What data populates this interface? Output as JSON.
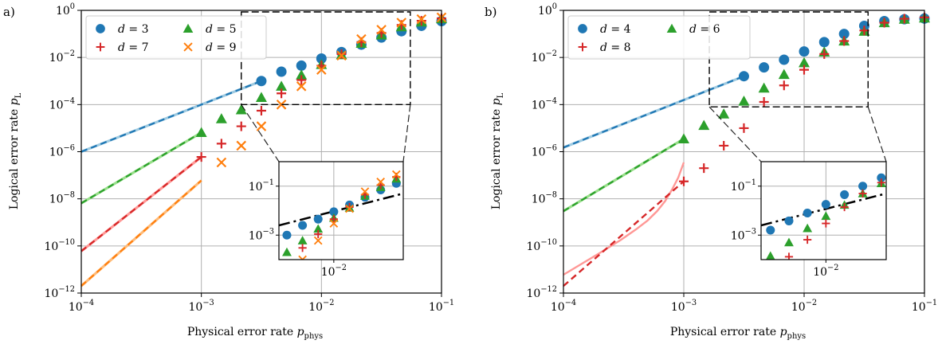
{
  "chart_data": [
    {
      "type": "scatter",
      "panel_label": "a)",
      "xlabel": "Physical error rate p_phys",
      "ylabel": "Logical error rate p_L",
      "x_scale": "log",
      "y_scale": "log",
      "xlim": [
        0.0001,
        0.1
      ],
      "ylim": [
        1e-12,
        1
      ],
      "grid": true,
      "legend_position": "top-left",
      "series": [
        {
          "name": "d = 3",
          "marker": "circle",
          "color": "#1f77b4",
          "x": [
            0.00316,
            0.00464,
            0.00681,
            0.01,
            0.0147,
            0.0215,
            0.0316,
            0.0464,
            0.0681,
            0.1
          ],
          "y": [
            0.001,
            0.0025,
            0.0045,
            0.009,
            0.017,
            0.035,
            0.07,
            0.13,
            0.22,
            0.35
          ]
        },
        {
          "name": "d = 5",
          "marker": "triangle",
          "color": "#2ca02c",
          "x": [
            0.001,
            0.00147,
            0.00215,
            0.00316,
            0.00464,
            0.00681,
            0.01,
            0.0147,
            0.0215,
            0.0316,
            0.0464,
            0.0681,
            0.1
          ],
          "y": [
            6.5e-06,
            2.5e-05,
            6e-05,
            0.0002,
            0.0006,
            0.0018,
            0.005,
            0.013,
            0.04,
            0.09,
            0.2,
            0.32,
            0.44
          ]
        },
        {
          "name": "d = 7",
          "marker": "plus",
          "color": "#d62728",
          "x": [
            0.001,
            0.00147,
            0.00215,
            0.00316,
            0.00464,
            0.00681,
            0.01,
            0.0147,
            0.0215,
            0.0316,
            0.0464,
            0.0681,
            0.1
          ],
          "y": [
            6e-07,
            2.2e-06,
            1.2e-05,
            5.5e-05,
            0.0003,
            0.0011,
            0.0045,
            0.014,
            0.045,
            0.11,
            0.24,
            0.36,
            0.46
          ]
        },
        {
          "name": "d = 9",
          "marker": "x",
          "color": "#ff7f0e",
          "x": [
            0.00147,
            0.00215,
            0.00316,
            0.00464,
            0.00681,
            0.01,
            0.0147,
            0.0215,
            0.0316,
            0.0464,
            0.0681,
            0.1
          ],
          "y": [
            3.5e-07,
            1.8e-06,
            1.2e-05,
            0.0001,
            0.0006,
            0.003,
            0.012,
            0.06,
            0.15,
            0.3,
            0.42,
            0.5
          ]
        }
      ],
      "fit_lines": [
        {
          "color": "#1f77b4",
          "light": "#9ecae1",
          "x": [
            0.0001,
            0.00316
          ],
          "y": [
            1e-06,
            0.001
          ]
        },
        {
          "color": "#2ca02c",
          "light": "#98df8a",
          "x": [
            0.0001,
            0.001
          ],
          "y": [
            6.5e-09,
            6.5e-06
          ]
        },
        {
          "color": "#d62728",
          "light": "#ff9896",
          "x": [
            0.0001,
            0.001
          ],
          "y": [
            6e-11,
            6e-07
          ]
        },
        {
          "color": "#ff7f0e",
          "light": "#ffbb78",
          "x": [
            0.0001,
            0.001
          ],
          "y": [
            2e-12,
            6e-08
          ]
        }
      ],
      "zoom_box": {
        "xlim": [
          0.00215,
          0.055
        ],
        "ylim": [
          0.0001,
          1
        ]
      },
      "inset": {
        "xlim": [
          0.0026,
          0.055
        ],
        "ylim": [
          0.0001,
          1
        ],
        "ytick_labels": [
          "10^-1",
          "10^-3"
        ],
        "xtick_label": "10^-2",
        "threshold_line": {
          "x": [
            0.0026,
            0.055
          ],
          "y": [
            0.0025,
            0.05
          ]
        }
      }
    },
    {
      "type": "scatter",
      "panel_label": "b)",
      "xlabel": "Physical error rate p_phys",
      "ylabel": "Logical error rate p_L",
      "x_scale": "log",
      "y_scale": "log",
      "xlim": [
        0.0001,
        0.1
      ],
      "ylim": [
        1e-12,
        1
      ],
      "grid": true,
      "legend_position": "top-left",
      "series": [
        {
          "name": "d = 4",
          "marker": "circle",
          "color": "#1f77b4",
          "x": [
            0.00316,
            0.00464,
            0.00681,
            0.01,
            0.0147,
            0.0215,
            0.0316,
            0.0464,
            0.0681,
            0.1
          ],
          "y": [
            0.0016,
            0.0038,
            0.008,
            0.018,
            0.045,
            0.1,
            0.22,
            0.35,
            0.42,
            0.45
          ]
        },
        {
          "name": "d = 6",
          "marker": "triangle",
          "color": "#2ca02c",
          "x": [
            0.001,
            0.00147,
            0.00215,
            0.00316,
            0.00464,
            0.00681,
            0.01,
            0.0147,
            0.0215,
            0.0316,
            0.0464,
            0.0681,
            0.1
          ],
          "y": [
            3.5e-06,
            1.3e-05,
            4e-05,
            0.00014,
            0.0005,
            0.0019,
            0.006,
            0.017,
            0.05,
            0.13,
            0.3,
            0.42,
            0.47
          ]
        },
        {
          "name": "d = 8",
          "marker": "plus",
          "color": "#d62728",
          "x": [
            0.001,
            0.00147,
            0.00215,
            0.00316,
            0.00464,
            0.00681,
            0.01,
            0.0147,
            0.0215,
            0.0316,
            0.0464,
            0.0681,
            0.1
          ],
          "y": [
            5.5e-08,
            2e-07,
            1.8e-06,
            1e-05,
            0.00013,
            0.00065,
            0.003,
            0.014,
            0.05,
            0.14,
            0.3,
            0.44,
            0.5
          ]
        }
      ],
      "fit_lines": [
        {
          "color": "#1f77b4",
          "light": "#9ecae1",
          "x": [
            0.0001,
            0.00316
          ],
          "y": [
            1.5e-06,
            0.0016
          ]
        },
        {
          "color": "#2ca02c",
          "light": "#98df8a",
          "x": [
            0.0001,
            0.001
          ],
          "y": [
            3e-09,
            3.5e-06
          ]
        }
      ],
      "extra_curves": [
        {
          "color": "#ff9896",
          "style": "solid",
          "x": [
            0.0001,
            0.0002,
            0.0003,
            0.0004,
            0.0005,
            0.0006,
            0.0007,
            0.0008,
            0.0009,
            0.001
          ],
          "y": [
            6e-12,
            5e-11,
            1.8e-10,
            5e-10,
            1.2e-09,
            3e-09,
            8e-09,
            2.5e-08,
            8e-08,
            3.5e-07
          ]
        },
        {
          "color": "#d62728",
          "style": "dashed",
          "x": [
            0.0001,
            0.001
          ],
          "y": [
            2e-12,
            5.5e-08
          ]
        }
      ],
      "zoom_box": {
        "xlim": [
          0.00163,
          0.034
        ],
        "ylim": [
          8e-05,
          1
        ]
      },
      "inset": {
        "xlim": [
          0.0026,
          0.035
        ],
        "ylim": [
          0.0001,
          1
        ],
        "ytick_labels": [
          "10^-1",
          "10^-3"
        ],
        "xtick_label": "10^-2",
        "threshold_line": {
          "x": [
            0.0026,
            0.035
          ],
          "y": [
            0.0025,
            0.05
          ]
        }
      }
    }
  ],
  "text": {
    "panel_a": "a)",
    "panel_b": "b)",
    "xlabel_main": "Physical error rate ",
    "xlabel_var": "p",
    "xlabel_sub": "phys",
    "ylabel_main": "Logical error rate ",
    "ylabel_var": "p",
    "ylabel_sub": "L"
  }
}
